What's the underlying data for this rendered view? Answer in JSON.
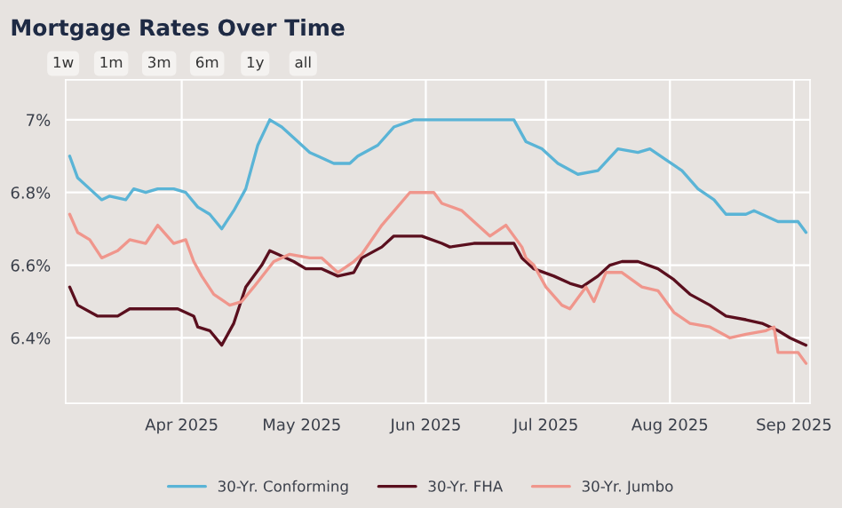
{
  "chart_data": {
    "type": "line",
    "title": "Mortgage Rates Over Time",
    "annotations": [
      "1w",
      "1m",
      "3m",
      "6m",
      "1y",
      "all"
    ],
    "xlim": [
      "2025-03-03",
      "2025-09-05"
    ],
    "xticks": [
      {
        "value": "2025-04-01",
        "label": "Apr 2025"
      },
      {
        "value": "2025-05-01",
        "label": "May 2025"
      },
      {
        "value": "2025-06-01",
        "label": "Jun 2025"
      },
      {
        "value": "2025-07-01",
        "label": "Jul 2025"
      },
      {
        "value": "2025-08-01",
        "label": "Aug 2025"
      },
      {
        "value": "2025-09-01",
        "label": "Sep 2025"
      }
    ],
    "ylim": [
      6.22,
      7.11
    ],
    "yticks": [
      {
        "value": 6.4,
        "label": "6.4%"
      },
      {
        "value": 6.6,
        "label": "6.6%"
      },
      {
        "value": 6.8,
        "label": "6.8%"
      },
      {
        "value": 7,
        "label": "7%"
      }
    ],
    "grid": true,
    "legend": "bottom",
    "marker": "none",
    "line_style": "solid",
    "series": [
      {
        "name": "30-Yr. Conforming",
        "color": "#5ab4d6",
        "x": [
          "2025-03-04",
          "2025-03-06",
          "2025-03-09",
          "2025-03-12",
          "2025-03-14",
          "2025-03-18",
          "2025-03-20",
          "2025-03-23",
          "2025-03-26",
          "2025-03-30",
          "2025-04-02",
          "2025-04-05",
          "2025-04-08",
          "2025-04-11",
          "2025-04-14",
          "2025-04-17",
          "2025-04-20",
          "2025-04-23",
          "2025-04-26",
          "2025-04-29",
          "2025-05-03",
          "2025-05-05",
          "2025-05-09",
          "2025-05-13",
          "2025-05-15",
          "2025-05-20",
          "2025-05-24",
          "2025-05-29",
          "2025-06-02",
          "2025-06-06",
          "2025-06-12",
          "2025-06-17",
          "2025-06-23",
          "2025-06-26",
          "2025-06-30",
          "2025-07-04",
          "2025-07-09",
          "2025-07-14",
          "2025-07-19",
          "2025-07-24",
          "2025-07-27",
          "2025-07-31",
          "2025-08-04",
          "2025-08-08",
          "2025-08-12",
          "2025-08-15",
          "2025-08-20",
          "2025-08-22",
          "2025-08-28",
          "2025-09-02",
          "2025-09-04"
        ],
        "values": [
          6.9,
          6.84,
          6.81,
          6.78,
          6.79,
          6.78,
          6.81,
          6.8,
          6.81,
          6.81,
          6.8,
          6.76,
          6.74,
          6.7,
          6.75,
          6.81,
          6.93,
          7.0,
          6.98,
          6.95,
          6.91,
          6.9,
          6.88,
          6.88,
          6.9,
          6.93,
          6.98,
          7.0,
          7.0,
          7.0,
          7.0,
          7.0,
          7.0,
          6.94,
          6.92,
          6.88,
          6.85,
          6.86,
          6.92,
          6.91,
          6.92,
          6.89,
          6.86,
          6.81,
          6.78,
          6.74,
          6.74,
          6.75,
          6.72,
          6.72,
          6.69
        ]
      },
      {
        "name": "30-Yr. FHA",
        "color": "#5a0f1e",
        "x": [
          "2025-03-04",
          "2025-03-06",
          "2025-03-11",
          "2025-03-16",
          "2025-03-19",
          "2025-03-27",
          "2025-03-31",
          "2025-04-04",
          "2025-04-05",
          "2025-04-08",
          "2025-04-11",
          "2025-04-14",
          "2025-04-17",
          "2025-04-21",
          "2025-04-23",
          "2025-04-25",
          "2025-04-29",
          "2025-05-02",
          "2025-05-06",
          "2025-05-10",
          "2025-05-14",
          "2025-05-16",
          "2025-05-21",
          "2025-05-24",
          "2025-05-27",
          "2025-05-28",
          "2025-05-31",
          "2025-06-05",
          "2025-06-07",
          "2025-06-13",
          "2025-06-17",
          "2025-06-23",
          "2025-06-25",
          "2025-06-28",
          "2025-07-03",
          "2025-07-07",
          "2025-07-10",
          "2025-07-14",
          "2025-07-17",
          "2025-07-20",
          "2025-07-24",
          "2025-07-29",
          "2025-08-02",
          "2025-08-06",
          "2025-08-11",
          "2025-08-15",
          "2025-08-20",
          "2025-08-24",
          "2025-08-28",
          "2025-08-31",
          "2025-09-04"
        ],
        "values": [
          6.54,
          6.49,
          6.46,
          6.46,
          6.48,
          6.48,
          6.48,
          6.46,
          6.43,
          6.42,
          6.38,
          6.44,
          6.54,
          6.6,
          6.64,
          6.63,
          6.61,
          6.59,
          6.59,
          6.57,
          6.58,
          6.62,
          6.65,
          6.68,
          6.68,
          6.68,
          6.68,
          6.66,
          6.65,
          6.66,
          6.66,
          6.66,
          6.62,
          6.59,
          6.57,
          6.55,
          6.54,
          6.57,
          6.6,
          6.61,
          6.61,
          6.59,
          6.56,
          6.52,
          6.49,
          6.46,
          6.45,
          6.44,
          6.42,
          6.4,
          6.38
        ]
      },
      {
        "name": "30-Yr. Jumbo",
        "color": "#f0968c",
        "x": [
          "2025-03-04",
          "2025-03-06",
          "2025-03-09",
          "2025-03-12",
          "2025-03-16",
          "2025-03-19",
          "2025-03-23",
          "2025-03-26",
          "2025-03-30",
          "2025-04-02",
          "2025-04-04",
          "2025-04-06",
          "2025-04-09",
          "2025-04-13",
          "2025-04-16",
          "2025-04-19",
          "2025-04-24",
          "2025-04-28",
          "2025-05-03",
          "2025-05-06",
          "2025-05-10",
          "2025-05-14",
          "2025-05-16",
          "2025-05-21",
          "2025-05-28",
          "2025-06-02",
          "2025-06-03",
          "2025-06-05",
          "2025-06-10",
          "2025-06-13",
          "2025-06-17",
          "2025-06-21",
          "2025-06-25",
          "2025-06-26",
          "2025-06-28",
          "2025-07-01",
          "2025-07-05",
          "2025-07-07",
          "2025-07-11",
          "2025-07-13",
          "2025-07-16",
          "2025-07-20",
          "2025-07-25",
          "2025-07-29",
          "2025-08-02",
          "2025-08-06",
          "2025-08-11",
          "2025-08-16",
          "2025-08-20",
          "2025-08-25",
          "2025-08-27",
          "2025-08-28",
          "2025-09-02",
          "2025-09-04"
        ],
        "values": [
          6.74,
          6.69,
          6.67,
          6.62,
          6.64,
          6.67,
          6.66,
          6.71,
          6.66,
          6.67,
          6.61,
          6.57,
          6.52,
          6.49,
          6.5,
          6.54,
          6.61,
          6.63,
          6.62,
          6.62,
          6.58,
          6.61,
          6.63,
          6.71,
          6.8,
          6.8,
          6.8,
          6.77,
          6.75,
          6.72,
          6.68,
          6.71,
          6.65,
          6.62,
          6.6,
          6.54,
          6.49,
          6.48,
          6.54,
          6.5,
          6.58,
          6.58,
          6.54,
          6.53,
          6.47,
          6.44,
          6.43,
          6.4,
          6.41,
          6.42,
          6.43,
          6.36,
          6.36,
          6.33
        ]
      }
    ]
  }
}
